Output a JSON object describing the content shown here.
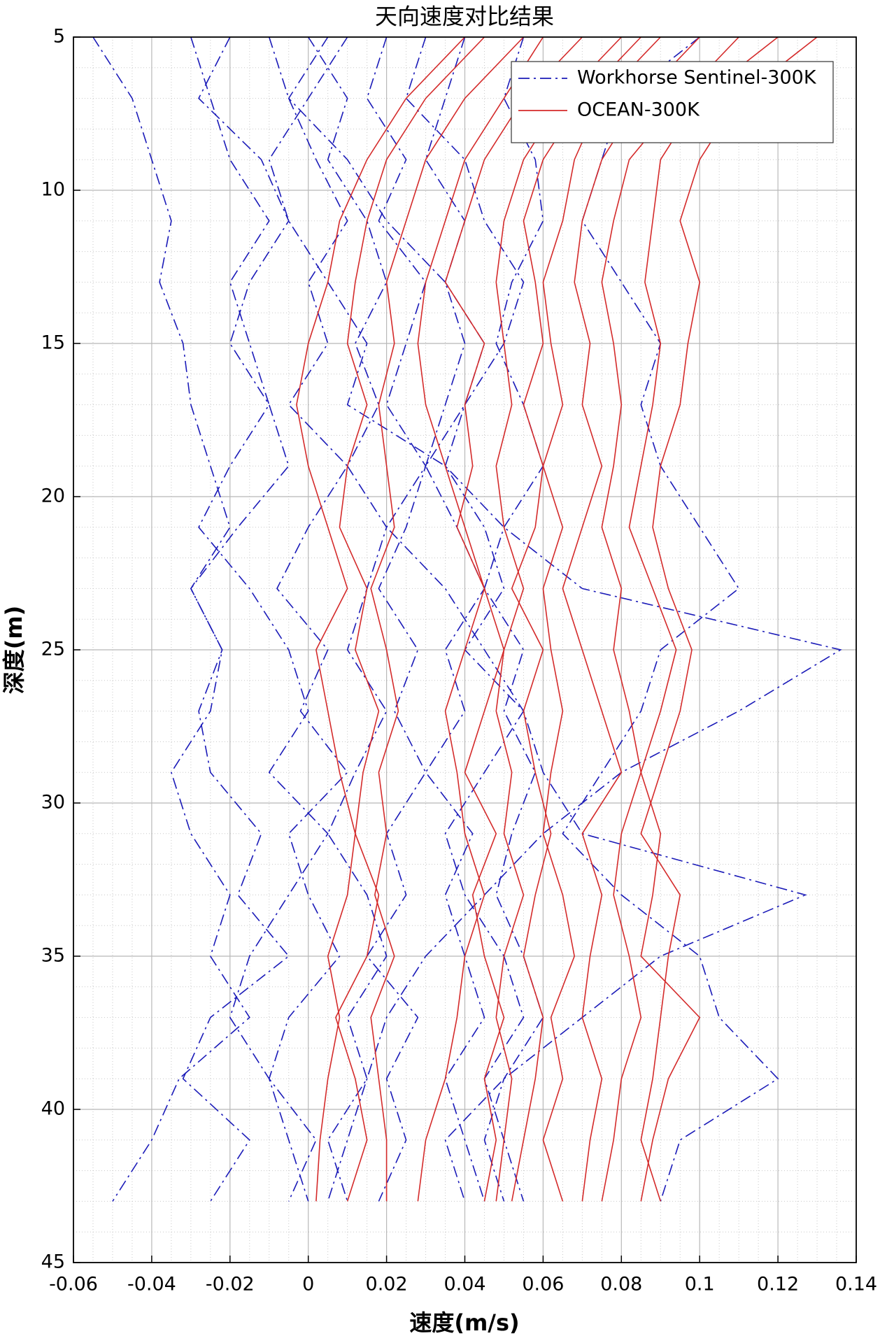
{
  "chart_data": {
    "type": "line",
    "title": "天向速度对比结果",
    "x_label": "速度(m/s)",
    "y_label": "深度(m)",
    "xlim": [
      -0.06,
      0.14
    ],
    "xticks": [
      -0.06,
      -0.04,
      -0.02,
      0,
      0.02,
      0.04,
      0.06,
      0.08,
      0.1,
      0.12,
      0.14
    ],
    "ylim": [
      5,
      45
    ],
    "yticks": [
      5,
      10,
      15,
      20,
      25,
      30,
      35,
      40,
      45
    ],
    "y_reversed": true,
    "grid": true,
    "minor_grid": true,
    "legend_loc": "upper right",
    "depth": [
      5,
      7,
      9,
      11,
      13,
      15,
      17,
      19,
      21,
      23,
      25,
      27,
      29,
      31,
      33,
      35,
      37,
      39,
      41,
      43
    ],
    "series": [
      {
        "name": "Workhorse Sentinel-300K",
        "color": "#1a1ab8",
        "linestyle": "dashdot",
        "values": [
          [
            -0.055,
            -0.045,
            -0.04,
            -0.035,
            -0.038,
            -0.032,
            -0.03,
            -0.025,
            -0.02,
            -0.03,
            -0.022,
            -0.025,
            -0.035,
            -0.03,
            -0.02,
            -0.025,
            -0.015,
            -0.033,
            -0.04,
            -0.05
          ],
          [
            -0.02,
            -0.028,
            -0.012,
            -0.005,
            -0.015,
            -0.02,
            -0.01,
            -0.005,
            -0.018,
            -0.03,
            -0.022,
            -0.028,
            -0.025,
            -0.012,
            -0.018,
            -0.005,
            -0.025,
            -0.032,
            -0.015,
            -0.025
          ],
          [
            -0.01,
            -0.005,
            0.002,
            0.01,
            0,
            0.005,
            -0.005,
            0.01,
            0,
            -0.008,
            0.005,
            -0.002,
            0.01,
            -0.005,
            0,
            0.008,
            -0.005,
            -0.01,
            0.002,
            -0.005
          ],
          [
            0,
            0.01,
            0.005,
            0.015,
            0.02,
            0.012,
            0.018,
            0.01,
            0.02,
            0.015,
            0.01,
            0.02,
            0.012,
            0.005,
            0.015,
            0.02,
            0.01,
            0.015,
            0.005,
            0.01
          ],
          [
            0.02,
            0.015,
            0.025,
            0.018,
            0.03,
            0.025,
            0.02,
            0.03,
            0.025,
            0.018,
            0.028,
            0.022,
            0.03,
            0.02,
            0.025,
            0.015,
            0.028,
            0.02,
            0.025,
            0.018
          ],
          [
            0.04,
            0.035,
            0.03,
            0.04,
            0.035,
            0.045,
            0.04,
            0.03,
            0.038,
            0.045,
            0.035,
            0.04,
            0.03,
            0.042,
            0.035,
            0.04,
            0.045,
            0.035,
            0.04,
            0.045
          ],
          [
            0.055,
            0.05,
            0.058,
            0.06,
            0.052,
            0.048,
            0.055,
            0.06,
            0.05,
            0.045,
            0.055,
            0.05,
            0.058,
            0.052,
            0.048,
            0.055,
            0.06,
            0.05,
            0.045,
            0.05
          ],
          [
            0.1,
            0.08,
            0.075,
            0.07,
            0.08,
            0.09,
            0.085,
            0.09,
            0.1,
            0.11,
            0.09,
            0.085,
            0.075,
            0.065,
            0.08,
            0.1,
            0.105,
            0.12,
            0.095,
            0.09
          ],
          [
            0.01,
            0,
            -0.01,
            -0.005,
            0.005,
            0.015,
            0.01,
            0.035,
            0.05,
            0.07,
            0.136,
            0.11,
            0.08,
            0.06,
            0.045,
            0.03,
            0.02,
            0.015,
            0.01,
            0.005
          ],
          [
            0.005,
            -0.005,
            0.01,
            0.02,
            0.035,
            0.04,
            0.035,
            0.03,
            0.02,
            0.035,
            0.045,
            0.055,
            0.06,
            0.07,
            0.127,
            0.09,
            0.07,
            0.05,
            0.035,
            0.04
          ],
          [
            -0.03,
            -0.025,
            -0.02,
            -0.01,
            -0.02,
            -0.015,
            -0.01,
            -0.02,
            -0.028,
            -0.015,
            -0.005,
            0,
            -0.01,
            0.005,
            -0.005,
            -0.015,
            -0.02,
            -0.01,
            -0.005,
            0
          ],
          [
            0.03,
            0.025,
            0.04,
            0.045,
            0.055,
            0.05,
            0.04,
            0.035,
            0.045,
            0.05,
            0.04,
            0.055,
            0.045,
            0.035,
            0.04,
            0.05,
            0.055,
            0.045,
            0.05,
            0.055
          ]
        ]
      },
      {
        "name": "OCEAN-300K",
        "color": "#d42a2a",
        "linestyle": "solid",
        "values": [
          [
            0.04,
            0.025,
            0.015,
            0.008,
            0.005,
            0,
            -0.003,
            0,
            0.005,
            0.01,
            0.002,
            0.005,
            0.008,
            0.012,
            0.01,
            0.005,
            0.008,
            0.005,
            0.003,
            0.002
          ],
          [
            0.045,
            0.03,
            0.02,
            0.015,
            0.012,
            0.01,
            0.015,
            0.01,
            0.008,
            0.015,
            0.012,
            0.018,
            0.014,
            0.012,
            0.018,
            0.015,
            0.007,
            0.012,
            0.015,
            0.01
          ],
          [
            0.055,
            0.04,
            0.03,
            0.025,
            0.02,
            0.022,
            0.018,
            0.02,
            0.022,
            0.016,
            0.02,
            0.023,
            0.018,
            0.02,
            0.017,
            0.022,
            0.016,
            0.018,
            0.02,
            0.02
          ],
          [
            0.06,
            0.05,
            0.04,
            0.035,
            0.03,
            0.028,
            0.03,
            0.035,
            0.04,
            0.045,
            0.04,
            0.035,
            0.038,
            0.04,
            0.045,
            0.04,
            0.038,
            0.035,
            0.03,
            0.028
          ],
          [
            0.07,
            0.055,
            0.045,
            0.04,
            0.035,
            0.045,
            0.04,
            0.042,
            0.038,
            0.045,
            0.05,
            0.045,
            0.04,
            0.048,
            0.042,
            0.045,
            0.05,
            0.045,
            0.048,
            0.045
          ],
          [
            0.08,
            0.065,
            0.055,
            0.05,
            0.048,
            0.05,
            0.052,
            0.048,
            0.05,
            0.055,
            0.05,
            0.048,
            0.052,
            0.05,
            0.055,
            0.05,
            0.048,
            0.052,
            0.05,
            0.048
          ],
          [
            0.085,
            0.07,
            0.06,
            0.055,
            0.058,
            0.06,
            0.055,
            0.06,
            0.058,
            0.052,
            0.06,
            0.055,
            0.058,
            0.062,
            0.058,
            0.055,
            0.06,
            0.058,
            0.055,
            0.052
          ],
          [
            0.09,
            0.075,
            0.068,
            0.065,
            0.06,
            0.062,
            0.065,
            0.06,
            0.065,
            0.06,
            0.062,
            0.065,
            0.062,
            0.06,
            0.065,
            0.068,
            0.062,
            0.065,
            0.06,
            0.065
          ],
          [
            0.1,
            0.085,
            0.075,
            0.07,
            0.068,
            0.072,
            0.07,
            0.075,
            0.07,
            0.065,
            0.07,
            0.075,
            0.08,
            0.07,
            0.075,
            0.072,
            0.07,
            0.075,
            0.072,
            0.07
          ],
          [
            0.11,
            0.095,
            0.082,
            0.078,
            0.075,
            0.078,
            0.08,
            0.078,
            0.075,
            0.08,
            0.078,
            0.082,
            0.085,
            0.08,
            0.078,
            0.082,
            0.085,
            0.08,
            0.078,
            0.075
          ],
          [
            0.12,
            0.1,
            0.09,
            0.088,
            0.086,
            0.09,
            0.088,
            0.085,
            0.082,
            0.088,
            0.094,
            0.09,
            0.085,
            0.09,
            0.088,
            0.085,
            0.1,
            0.092,
            0.088,
            0.085
          ],
          [
            0.13,
            0.11,
            0.1,
            0.095,
            0.1,
            0.097,
            0.095,
            0.09,
            0.088,
            0.092,
            0.098,
            0.095,
            0.09,
            0.085,
            0.095,
            0.092,
            0.09,
            0.088,
            0.085,
            0.09
          ]
        ]
      }
    ]
  }
}
